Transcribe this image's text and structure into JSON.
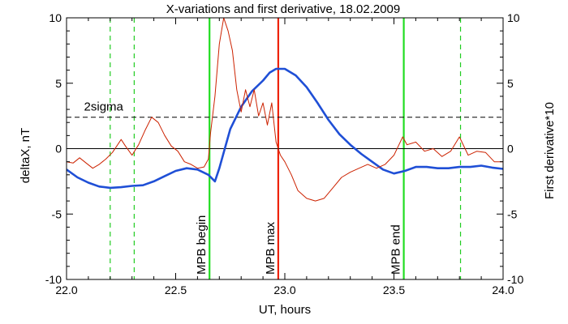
{
  "chart_data": {
    "type": "line",
    "title": "X-variations and first derivative, 18.02.2009",
    "xlabel": "UT, hours",
    "ylabel_left": "deltaX, nT",
    "ylabel_right": "First derivative*10",
    "xlim": [
      22.0,
      24.0
    ],
    "ylim": [
      -10,
      10
    ],
    "x_ticks": [
      22.0,
      22.5,
      23.0,
      23.5,
      24.0
    ],
    "x_tick_labels": [
      "22.0",
      "22.5",
      "23.0",
      "23.5",
      "24.0"
    ],
    "y_ticks": [
      -10,
      -5,
      0,
      5,
      10
    ],
    "y_tick_labels": [
      "-10",
      "-5",
      "0",
      "5",
      "10"
    ],
    "colors": {
      "deltaX": "#1f4fd6",
      "derivative": "#cc2200",
      "mpb_edge": "#22dd22",
      "mpb_max": "#ee2200",
      "sigma_line": "#000000",
      "zero_line": "#000000"
    },
    "series": [
      {
        "name": "deltaX, nT",
        "axis": "left",
        "x": [
          22.0,
          22.05,
          22.1,
          22.15,
          22.2,
          22.25,
          22.3,
          22.35,
          22.4,
          22.45,
          22.5,
          22.55,
          22.6,
          22.65,
          22.68,
          22.7,
          22.72,
          22.75,
          22.8,
          22.85,
          22.9,
          22.93,
          22.96,
          23.0,
          23.05,
          23.1,
          23.15,
          23.2,
          23.25,
          23.3,
          23.35,
          23.4,
          23.45,
          23.5,
          23.55,
          23.6,
          23.65,
          23.7,
          23.75,
          23.8,
          23.85,
          23.9,
          23.95,
          24.0
        ],
        "y": [
          -1.6,
          -2.2,
          -2.6,
          -2.9,
          -3.0,
          -2.95,
          -2.85,
          -2.8,
          -2.5,
          -2.1,
          -1.7,
          -1.5,
          -1.6,
          -2.0,
          -2.5,
          -1.5,
          -0.3,
          1.5,
          3.2,
          4.4,
          5.2,
          5.8,
          6.1,
          6.1,
          5.6,
          4.7,
          3.5,
          2.2,
          1.1,
          0.3,
          -0.4,
          -1.0,
          -1.6,
          -1.9,
          -1.7,
          -1.4,
          -1.4,
          -1.5,
          -1.5,
          -1.4,
          -1.4,
          -1.3,
          -1.45,
          -1.55
        ]
      },
      {
        "name": "First derivative*10",
        "axis": "right",
        "x": [
          22.0,
          22.03,
          22.06,
          22.09,
          22.12,
          22.15,
          22.18,
          22.21,
          22.23,
          22.25,
          22.27,
          22.3,
          22.33,
          22.36,
          22.39,
          22.42,
          22.45,
          22.48,
          22.51,
          22.54,
          22.57,
          22.6,
          22.63,
          22.65,
          22.66,
          22.68,
          22.7,
          22.72,
          22.74,
          22.76,
          22.78,
          22.8,
          22.82,
          22.84,
          22.86,
          22.88,
          22.9,
          22.92,
          22.94,
          22.96,
          22.98,
          23.0,
          23.03,
          23.06,
          23.1,
          23.14,
          23.18,
          23.22,
          23.26,
          23.3,
          23.34,
          23.38,
          23.42,
          23.46,
          23.5,
          23.52,
          23.54,
          23.56,
          23.6,
          23.64,
          23.68,
          23.72,
          23.76,
          23.8,
          23.84,
          23.88,
          23.92,
          23.96,
          24.0
        ],
        "y": [
          -1.0,
          -1.1,
          -0.7,
          -1.1,
          -1.5,
          -1.2,
          -0.8,
          -0.3,
          0.2,
          0.7,
          0.2,
          -0.5,
          0.3,
          1.4,
          2.4,
          2.0,
          1.0,
          0.2,
          -0.2,
          -1.0,
          -1.2,
          -1.5,
          -1.4,
          -0.8,
          1.2,
          4.0,
          8.0,
          10.0,
          9.0,
          7.5,
          4.5,
          2.8,
          4.5,
          3.2,
          4.5,
          2.5,
          3.5,
          1.8,
          3.5,
          0.5,
          -0.5,
          -1.0,
          -2.0,
          -3.2,
          -3.8,
          -4.0,
          -3.8,
          -3.0,
          -2.2,
          -1.8,
          -1.5,
          -1.2,
          -1.5,
          -1.2,
          -0.5,
          0.2,
          0.9,
          0.3,
          0.5,
          -0.2,
          0.0,
          -0.6,
          -0.2,
          0.9,
          -0.5,
          -0.2,
          -0.3,
          -1.0,
          -1.0
        ]
      }
    ],
    "reference_lines": [
      {
        "axis": "y",
        "value": 2.4,
        "style": "dashed",
        "label": "2sigma"
      },
      {
        "axis": "y",
        "value": 0,
        "style": "solid",
        "label": ""
      }
    ],
    "vertical_markers": [
      {
        "x": 22.2,
        "style": "dashed",
        "color": "#22cc22",
        "label": ""
      },
      {
        "x": 22.31,
        "style": "dashed",
        "color": "#22cc22",
        "label": ""
      },
      {
        "x": 22.655,
        "style": "solid",
        "color": "#22dd22",
        "label": "MPB begin"
      },
      {
        "x": 22.97,
        "style": "solid",
        "color": "#ee2200",
        "label": "MPB max"
      },
      {
        "x": 23.545,
        "style": "solid",
        "color": "#22dd22",
        "label": "MPB end"
      },
      {
        "x": 23.805,
        "style": "dashed",
        "color": "#22cc22",
        "label": ""
      }
    ],
    "grid": false,
    "legend": "none"
  }
}
